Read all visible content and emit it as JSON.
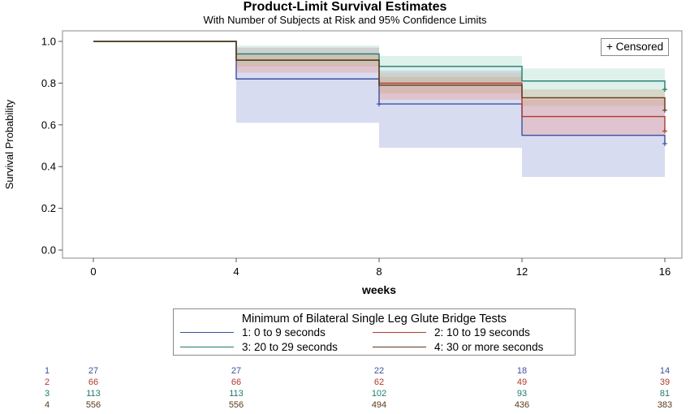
{
  "title": "Product-Limit Survival Estimates",
  "subtitle": "With Number of Subjects at Risk and 95% Confidence Limits",
  "censored_label": "+ Censored",
  "legend_title": "Minimum of Bilateral Single Leg Glute Bridge Tests",
  "colors": {
    "g1": "#3f4fa0",
    "g2": "#b03a2e",
    "g3": "#1f7a6e",
    "g4": "#5a3a1a",
    "band1": "#b8bfe3",
    "band2": "#e8a6a6",
    "band3": "#b6dfd2",
    "band4": "#c9a985"
  },
  "chart_data": {
    "type": "line",
    "title": "Product-Limit Survival Estimates",
    "subtitle": "With Number of Subjects at Risk and 95% Confidence Limits",
    "xlabel": "weeks",
    "ylabel": "Survival Probability",
    "xlim": [
      0,
      16
    ],
    "ylim": [
      0,
      1.0
    ],
    "xticks": [
      "0",
      "4",
      "8",
      "12",
      "16"
    ],
    "yticks": [
      "0.0",
      "0.2",
      "0.4",
      "0.6",
      "0.8",
      "1.0"
    ],
    "series": [
      {
        "name": "1: 0 to 9 seconds",
        "x": [
          0,
          4,
          8,
          12,
          16
        ],
        "y": [
          1.0,
          0.82,
          0.7,
          0.55,
          0.51
        ],
        "lower": [
          1.0,
          0.61,
          0.49,
          0.35,
          0.35
        ],
        "upper": [
          1.0,
          0.97,
          0.86,
          0.72,
          0.72
        ],
        "censored": [
          [
            8,
            0.7
          ],
          [
            16,
            0.51
          ]
        ],
        "at_risk": [
          "27",
          "27",
          "22",
          "18",
          "14"
        ]
      },
      {
        "name": "2: 10 to 19 seconds",
        "x": [
          0,
          4,
          8,
          12,
          16
        ],
        "y": [
          1.0,
          0.91,
          0.8,
          0.64,
          0.57
        ],
        "lower": [
          1.0,
          0.85,
          0.72,
          0.55,
          0.55
        ],
        "upper": [
          1.0,
          0.97,
          0.85,
          0.73,
          0.73
        ],
        "censored": [
          [
            16,
            0.57
          ]
        ],
        "at_risk": [
          "66",
          "66",
          "62",
          "49",
          "39"
        ]
      },
      {
        "name": "3: 20 to 29 seconds",
        "x": [
          0,
          4,
          8,
          12,
          16
        ],
        "y": [
          1.0,
          0.94,
          0.88,
          0.81,
          0.77
        ],
        "lower": [
          1.0,
          0.89,
          0.8,
          0.73,
          0.73
        ],
        "upper": [
          1.0,
          0.98,
          0.93,
          0.87,
          0.87
        ],
        "censored": [
          [
            16,
            0.77
          ]
        ],
        "at_risk": [
          "113",
          "113",
          "102",
          "93",
          "81"
        ]
      },
      {
        "name": "4: 30 or more seconds",
        "x": [
          0,
          4,
          8,
          12,
          16
        ],
        "y": [
          1.0,
          0.91,
          0.79,
          0.73,
          0.67
        ],
        "lower": [
          1.0,
          0.88,
          0.75,
          0.69,
          0.69
        ],
        "upper": [
          1.0,
          0.94,
          0.83,
          0.77,
          0.77
        ],
        "censored": [
          [
            16,
            0.67
          ]
        ],
        "at_risk": [
          "556",
          "556",
          "494",
          "436",
          "383"
        ]
      }
    ],
    "legend_position": "bottom",
    "risk_table_labels": [
      "1",
      "2",
      "3",
      "4"
    ]
  }
}
